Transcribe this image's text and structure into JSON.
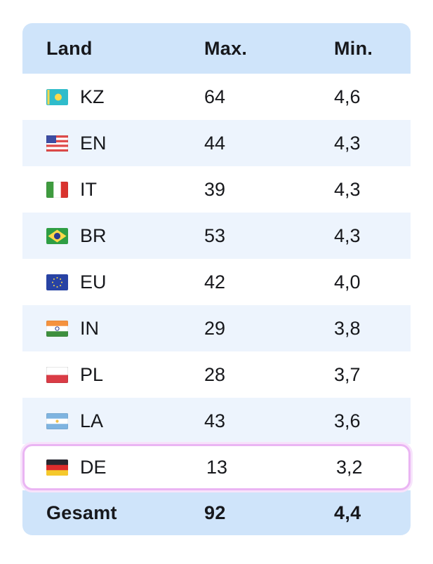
{
  "table": {
    "columns": [
      "Land",
      "Max.",
      "Min."
    ],
    "rows": [
      {
        "flag": "kz",
        "code": "KZ",
        "max": "64",
        "min": "4,6",
        "highlight": false
      },
      {
        "flag": "us",
        "code": "EN",
        "max": "44",
        "min": "4,3",
        "highlight": false
      },
      {
        "flag": "it",
        "code": "IT",
        "max": "39",
        "min": "4,3",
        "highlight": false
      },
      {
        "flag": "br",
        "code": "BR",
        "max": "53",
        "min": "4,3",
        "highlight": false
      },
      {
        "flag": "eu",
        "code": "EU",
        "max": "42",
        "min": "4,0",
        "highlight": false
      },
      {
        "flag": "in",
        "code": "IN",
        "max": "29",
        "min": "3,8",
        "highlight": false
      },
      {
        "flag": "pl",
        "code": "PL",
        "max": "28",
        "min": "3,7",
        "highlight": false
      },
      {
        "flag": "ar",
        "code": "LA",
        "max": "43",
        "min": "3,6",
        "highlight": false
      },
      {
        "flag": "de",
        "code": "DE",
        "max": "13",
        "min": "3,2",
        "highlight": true
      }
    ],
    "footer": {
      "label": "Gesamt",
      "max": "92",
      "min": "4,4"
    },
    "selected_row": "DE"
  },
  "colors": {
    "header_bg": "#cfe4fa",
    "row_bg": "#ffffff",
    "row_alt_bg": "#edf4fd",
    "footer_bg": "#cfe4fa",
    "highlight_border": "#eab5f3",
    "highlight_glow": "#f7e3fb",
    "text": "#17181c"
  }
}
